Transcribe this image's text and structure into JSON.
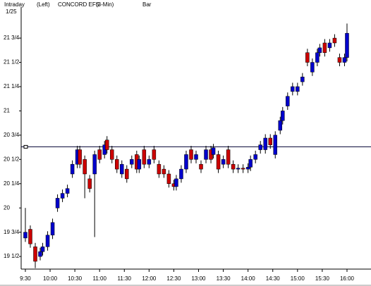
{
  "chart_data": {
    "type": "candlestick",
    "header": [
      "Intraday",
      "(Left)",
      "CONCORD EFS",
      "(3-Min)",
      "Bar"
    ],
    "date": "1/25",
    "xlim": [
      -1.7,
      139.7
    ],
    "xticks": [
      {
        "value": 0,
        "label": "9:30"
      },
      {
        "value": 10,
        "label": "10:00"
      },
      {
        "value": 20,
        "label": "10:30"
      },
      {
        "value": 30,
        "label": "11:00"
      },
      {
        "value": 40,
        "label": "11:30"
      },
      {
        "value": 50,
        "label": "12:00"
      },
      {
        "value": 60,
        "label": "12:30"
      },
      {
        "value": 70,
        "label": "13:00"
      },
      {
        "value": 80,
        "label": "13:30"
      },
      {
        "value": 90,
        "label": "14:00"
      },
      {
        "value": 100,
        "label": "14:30"
      },
      {
        "value": 110,
        "label": "15:00"
      },
      {
        "value": 120,
        "label": "15:30"
      },
      {
        "value": 130,
        "label": "16:00"
      }
    ],
    "ylim": [
      19.37,
      22.07
    ],
    "yticks": [
      {
        "value": 19.5,
        "label": "19 1/2"
      },
      {
        "value": 19.75,
        "label": "19 3/4"
      },
      20,
      {
        "value": 20.25,
        "label": "20 1/4"
      },
      {
        "value": 20.5,
        "label": "20 1/2"
      },
      {
        "value": 20.75,
        "label": "20 3/4"
      },
      21,
      {
        "value": 21.25,
        "label": "21 1/4"
      },
      {
        "value": 21.5,
        "label": "21 1/2"
      },
      {
        "value": 21.75,
        "label": "21 3/4"
      }
    ],
    "ref_line": 20.63,
    "up_color": "#0000cc",
    "down_color": "#cc0000",
    "x": [
      0,
      2,
      4,
      6,
      7,
      9,
      11,
      13,
      15,
      17,
      19,
      21,
      22,
      24,
      26,
      28,
      30,
      32,
      33,
      35,
      37,
      39,
      41,
      43,
      45,
      46,
      48,
      50,
      52,
      54,
      56,
      58,
      60,
      61,
      63,
      65,
      67,
      69,
      71,
      73,
      75,
      76,
      78,
      80,
      82,
      84,
      86,
      88,
      90,
      91,
      93,
      95,
      97,
      99,
      101,
      103,
      104,
      106,
      108,
      110,
      112,
      114,
      116,
      118,
      119,
      121,
      123,
      125,
      127,
      129,
      130
    ],
    "open": [
      19.69,
      19.78,
      19.6,
      19.5,
      19.55,
      19.6,
      19.72,
      20.0,
      20.1,
      20.15,
      20.35,
      20.45,
      20.6,
      20.5,
      20.3,
      20.35,
      20.6,
      20.55,
      20.7,
      20.6,
      20.5,
      20.35,
      20.4,
      20.45,
      20.55,
      20.4,
      20.6,
      20.45,
      20.6,
      20.45,
      20.4,
      20.35,
      20.25,
      20.22,
      20.3,
      20.4,
      20.6,
      20.5,
      20.45,
      20.5,
      20.6,
      20.55,
      20.55,
      20.45,
      20.6,
      20.45,
      20.4,
      20.41,
      20.4,
      20.42,
      20.5,
      20.6,
      20.6,
      20.72,
      20.55,
      20.8,
      20.9,
      21.05,
      21.2,
      21.2,
      21.3,
      21.6,
      21.4,
      21.5,
      21.6,
      21.7,
      21.65,
      21.75,
      21.55,
      21.5,
      21.55
    ],
    "close": [
      19.75,
      19.63,
      19.45,
      19.55,
      19.6,
      19.72,
      19.85,
      20.1,
      20.15,
      20.2,
      20.45,
      20.6,
      20.45,
      20.35,
      20.2,
      20.55,
      20.5,
      20.65,
      20.6,
      20.5,
      20.4,
      20.45,
      20.3,
      20.5,
      20.4,
      20.5,
      20.45,
      20.5,
      20.5,
      20.35,
      20.35,
      20.25,
      20.22,
      20.3,
      20.4,
      20.55,
      20.5,
      20.55,
      20.4,
      20.6,
      20.5,
      20.62,
      20.4,
      20.5,
      20.45,
      20.4,
      20.41,
      20.4,
      20.42,
      20.5,
      20.55,
      20.65,
      20.72,
      20.65,
      20.75,
      20.9,
      21.0,
      21.15,
      21.25,
      21.25,
      21.35,
      21.5,
      21.5,
      21.6,
      21.65,
      21.6,
      21.7,
      21.7,
      21.5,
      21.55,
      21.8
    ],
    "high": [
      20.0,
      19.82,
      19.64,
      19.59,
      19.64,
      19.76,
      19.89,
      20.14,
      20.19,
      20.24,
      20.49,
      20.64,
      20.64,
      20.54,
      20.34,
      20.59,
      20.64,
      20.69,
      20.74,
      20.64,
      20.54,
      20.49,
      20.44,
      20.54,
      20.59,
      20.54,
      20.64,
      20.54,
      20.64,
      20.49,
      20.44,
      20.39,
      20.29,
      20.34,
      20.44,
      20.59,
      20.64,
      20.59,
      20.49,
      20.64,
      20.64,
      20.66,
      20.59,
      20.54,
      20.64,
      20.49,
      20.45,
      20.45,
      20.46,
      20.54,
      20.59,
      20.69,
      20.76,
      20.76,
      20.79,
      20.94,
      21.04,
      21.19,
      21.29,
      21.29,
      21.39,
      21.64,
      21.54,
      21.64,
      21.69,
      21.74,
      21.74,
      21.79,
      21.59,
      21.59,
      21.9
    ],
    "low": [
      19.65,
      19.59,
      19.38,
      19.46,
      19.51,
      19.56,
      19.68,
      19.96,
      20.06,
      20.11,
      20.31,
      20.41,
      20.41,
      20.1,
      20.16,
      19.7,
      20.46,
      20.51,
      20.56,
      20.46,
      20.36,
      20.31,
      20.26,
      20.41,
      20.36,
      20.36,
      20.41,
      20.41,
      20.46,
      20.31,
      20.31,
      20.21,
      20.18,
      20.18,
      20.26,
      20.36,
      20.46,
      20.46,
      20.36,
      20.46,
      20.46,
      20.51,
      20.36,
      20.41,
      20.41,
      20.36,
      20.36,
      20.36,
      20.36,
      20.38,
      20.46,
      20.56,
      20.56,
      20.61,
      20.51,
      20.76,
      20.86,
      21.01,
      21.16,
      21.16,
      21.26,
      21.46,
      21.36,
      21.46,
      21.56,
      21.56,
      21.61,
      21.66,
      21.46,
      21.46,
      21.51
    ]
  }
}
